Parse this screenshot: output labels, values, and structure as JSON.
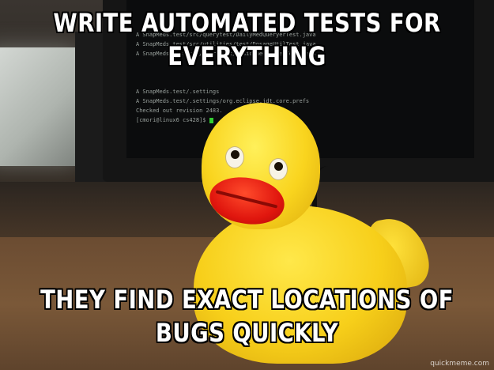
{
  "meme": {
    "top_text": "WRITE AUTOMATED TESTS FOR EVERYTHING",
    "bottom_text": "THEY FIND EXACT LOCATIONS OF BUGS QUICKLY",
    "watermark": "quickmeme.com"
  },
  "terminal": {
    "lines": [
      "A    SnapMeds.test/src/querytest/DailyMedQueryerTest.java",
      "A    SnapMeds.test/src/utilities/test/DosageUtilTest.java",
      "A    SnapMeds.test/src/querytest/MedicineCabinetTest.java",
      "A    SnapMeds.test/.settings",
      "A    SnapMeds.test/.settings/org.eclipse.jdt.core.prefs",
      "Checked out revision 2483.",
      "[cmori@linux6 cs428]$"
    ]
  },
  "colors": {
    "duck_yellow": "#f9d41e",
    "beak_red": "#e0160e",
    "cursor_green": "#3cff3c"
  }
}
